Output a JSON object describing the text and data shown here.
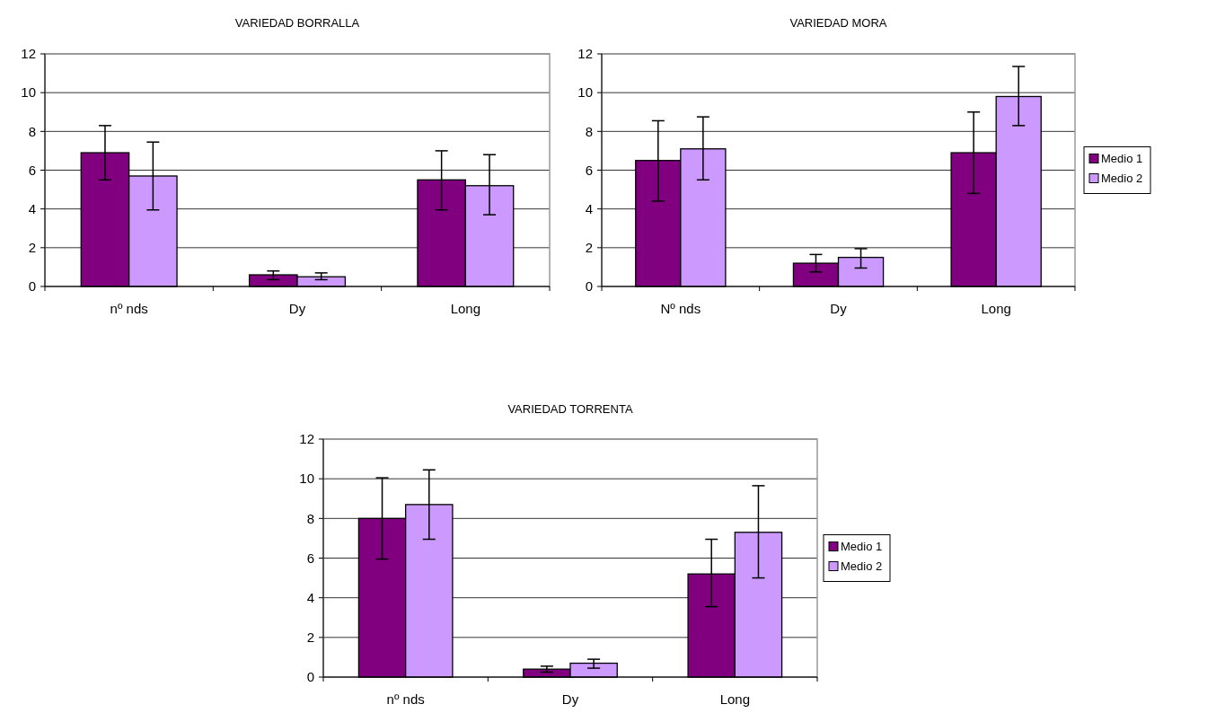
{
  "chart_data": [
    {
      "type": "bar",
      "title": "VARIEDAD BORRALLA",
      "categories": [
        "nº nds",
        "Dy",
        "Long"
      ],
      "ylim": [
        0,
        12
      ],
      "yticks": [
        0,
        2,
        4,
        6,
        8,
        10,
        12
      ],
      "grid": "y",
      "legend": false,
      "series": [
        {
          "color": "#800080",
          "values": [
            6.9,
            0.6,
            5.5
          ],
          "errors": [
            [
              5.5,
              8.3
            ],
            [
              0.35,
              0.8
            ],
            [
              3.95,
              7.0
            ]
          ]
        },
        {
          "color": "#cc99ff",
          "values": [
            5.7,
            0.5,
            5.2
          ],
          "errors": [
            [
              3.95,
              7.45
            ],
            [
              0.35,
              0.7
            ],
            [
              3.7,
              6.8
            ]
          ]
        }
      ]
    },
    {
      "type": "bar",
      "title": "VARIEDAD MORA",
      "categories": [
        "Nº nds",
        "Dy",
        "Long"
      ],
      "ylim": [
        0,
        12
      ],
      "yticks": [
        0,
        2,
        4,
        6,
        8,
        10,
        12
      ],
      "grid": "y",
      "legend": "right",
      "series": [
        {
          "name": "Medio 1",
          "color": "#800080",
          "values": [
            6.5,
            1.2,
            6.9
          ],
          "errors": [
            [
              4.4,
              8.55
            ],
            [
              0.75,
              1.65
            ],
            [
              4.8,
              9.0
            ]
          ]
        },
        {
          "name": "Medio 2",
          "color": "#cc99ff",
          "values": [
            7.1,
            1.5,
            9.8
          ],
          "errors": [
            [
              5.5,
              8.75
            ],
            [
              0.95,
              1.95
            ],
            [
              8.3,
              11.35
            ]
          ]
        }
      ]
    },
    {
      "type": "bar",
      "title": "VARIEDAD TORRENTA",
      "categories": [
        "nº nds",
        "Dy",
        "Long"
      ],
      "ylim": [
        0,
        12
      ],
      "yticks": [
        0,
        2,
        4,
        6,
        8,
        10,
        12
      ],
      "grid": "y",
      "legend": "right",
      "series": [
        {
          "name": "Medio 1",
          "color": "#800080",
          "values": [
            8.0,
            0.4,
            5.2
          ],
          "errors": [
            [
              5.95,
              10.05
            ],
            [
              0.25,
              0.55
            ],
            [
              3.55,
              6.95
            ]
          ]
        },
        {
          "name": "Medio 2",
          "color": "#cc99ff",
          "values": [
            8.7,
            0.7,
            7.3
          ],
          "errors": [
            [
              6.95,
              10.45
            ],
            [
              0.45,
              0.9
            ],
            [
              5.0,
              9.65
            ]
          ]
        }
      ]
    }
  ]
}
